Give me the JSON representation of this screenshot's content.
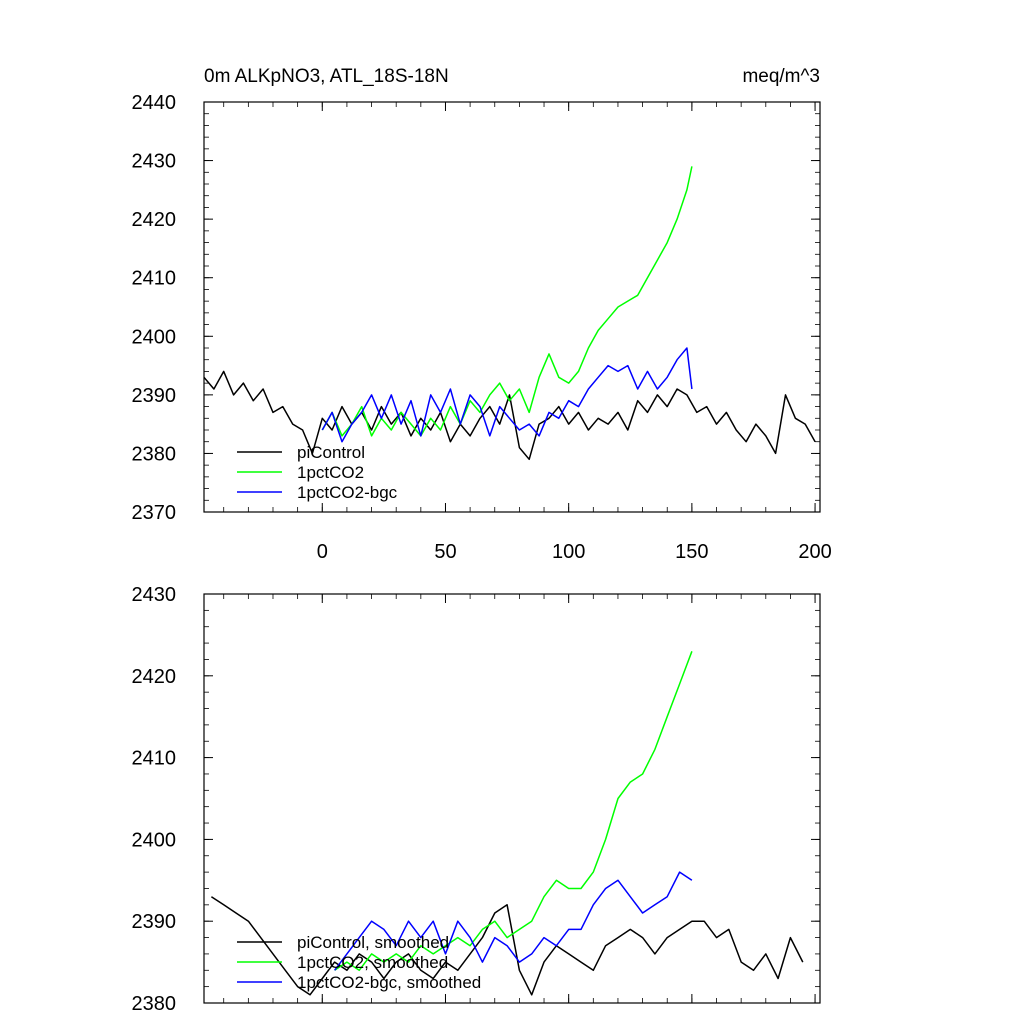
{
  "chart_data": [
    {
      "type": "line",
      "title": "0m ALKpNO3, ATL_18S-18N",
      "units": "meq/m^3",
      "xlabel": "",
      "ylabel": "",
      "xlim": [
        -48,
        202
      ],
      "ylim": [
        2370,
        2440
      ],
      "xticks": [
        0,
        50,
        100,
        150,
        200
      ],
      "xtick_labels": [
        "0",
        "50",
        "100",
        "150",
        "200"
      ],
      "yticks": [
        2370,
        2380,
        2390,
        2400,
        2410,
        2420,
        2430,
        2440
      ],
      "ytick_labels": [
        "2370",
        "2380",
        "2390",
        "2400",
        "2410",
        "2420",
        "2430",
        "2440"
      ],
      "legend_position": "bottom-left",
      "series": [
        {
          "name": "piControl",
          "color": "#000000",
          "x": [
            -48,
            -44,
            -40,
            -36,
            -32,
            -28,
            -24,
            -20,
            -16,
            -12,
            -8,
            -4,
            0,
            4,
            8,
            12,
            16,
            20,
            24,
            28,
            32,
            36,
            40,
            44,
            48,
            52,
            56,
            60,
            64,
            68,
            72,
            76,
            80,
            84,
            88,
            92,
            96,
            100,
            104,
            108,
            112,
            116,
            120,
            124,
            128,
            132,
            136,
            140,
            144,
            148,
            152,
            156,
            160,
            164,
            168,
            172,
            176,
            180,
            184,
            188,
            192,
            196,
            200
          ],
          "values": [
            2393,
            2391,
            2394,
            2390,
            2392,
            2389,
            2391,
            2387,
            2388,
            2385,
            2384,
            2380,
            2386,
            2384,
            2388,
            2385,
            2387,
            2384,
            2388,
            2385,
            2387,
            2383,
            2386,
            2384,
            2387,
            2382,
            2385,
            2383,
            2386,
            2388,
            2385,
            2390,
            2381,
            2379,
            2385,
            2386,
            2388,
            2385,
            2387,
            2384,
            2386,
            2385,
            2387,
            2384,
            2389,
            2387,
            2390,
            2388,
            2391,
            2390,
            2387,
            2388,
            2385,
            2387,
            2384,
            2382,
            2385,
            2383,
            2380,
            2390,
            2386,
            2385,
            2382
          ]
        },
        {
          "name": "1pctCO2",
          "color": "#00ff00",
          "x": [
            0,
            4,
            8,
            12,
            16,
            20,
            24,
            28,
            32,
            36,
            40,
            44,
            48,
            52,
            56,
            60,
            64,
            68,
            72,
            76,
            80,
            84,
            88,
            92,
            96,
            100,
            104,
            108,
            112,
            116,
            120,
            124,
            128,
            132,
            136,
            140,
            144,
            148,
            150
          ],
          "values": [
            2384,
            2387,
            2383,
            2385,
            2388,
            2383,
            2386,
            2384,
            2387,
            2385,
            2383,
            2386,
            2384,
            2388,
            2385,
            2389,
            2387,
            2390,
            2392,
            2389,
            2391,
            2387,
            2393,
            2397,
            2393,
            2392,
            2394,
            2398,
            2401,
            2403,
            2405,
            2406,
            2407,
            2410,
            2413,
            2416,
            2420,
            2425,
            2429
          ]
        },
        {
          "name": "1pctCO2-bgc",
          "color": "#0000ff",
          "x": [
            0,
            4,
            8,
            12,
            16,
            20,
            24,
            28,
            32,
            36,
            40,
            44,
            48,
            52,
            56,
            60,
            64,
            68,
            72,
            76,
            80,
            84,
            88,
            92,
            96,
            100,
            104,
            108,
            112,
            116,
            120,
            124,
            128,
            132,
            136,
            140,
            144,
            148,
            150
          ],
          "values": [
            2384,
            2387,
            2382,
            2385,
            2387,
            2390,
            2386,
            2390,
            2385,
            2389,
            2383,
            2390,
            2387,
            2391,
            2385,
            2390,
            2388,
            2383,
            2388,
            2386,
            2384,
            2385,
            2383,
            2387,
            2386,
            2389,
            2388,
            2391,
            2393,
            2395,
            2394,
            2395,
            2391,
            2394,
            2391,
            2393,
            2396,
            2398,
            2391
          ]
        }
      ]
    },
    {
      "type": "line",
      "title": "",
      "xlabel": "",
      "ylabel": "",
      "xlim": [
        -48,
        202
      ],
      "ylim": [
        2380,
        2430
      ],
      "xticks": [
        0,
        50,
        100,
        150,
        200
      ],
      "yticks": [
        2380,
        2390,
        2400,
        2410,
        2420,
        2430
      ],
      "ytick_labels": [
        "2380",
        "2390",
        "2400",
        "2410",
        "2420",
        "2430"
      ],
      "legend_position": "bottom-left",
      "series": [
        {
          "name": "piControl, smoothed",
          "color": "#000000",
          "x": [
            -45,
            -40,
            -35,
            -30,
            -25,
            -20,
            -15,
            -10,
            -5,
            0,
            5,
            10,
            15,
            20,
            25,
            30,
            35,
            40,
            45,
            50,
            55,
            60,
            65,
            70,
            75,
            80,
            85,
            90,
            95,
            100,
            105,
            110,
            115,
            120,
            125,
            130,
            135,
            140,
            145,
            150,
            155,
            160,
            165,
            170,
            175,
            180,
            185,
            190,
            195
          ],
          "values": [
            2393,
            2392,
            2391,
            2390,
            2388,
            2386,
            2384,
            2382,
            2381,
            2383,
            2385,
            2384,
            2386,
            2385,
            2383,
            2385,
            2386,
            2384,
            2383,
            2385,
            2384,
            2386,
            2388,
            2391,
            2392,
            2384,
            2381,
            2385,
            2387,
            2386,
            2385,
            2384,
            2387,
            2388,
            2389,
            2388,
            2386,
            2388,
            2389,
            2390,
            2390,
            2388,
            2389,
            2385,
            2384,
            2386,
            2383,
            2388,
            2385
          ]
        },
        {
          "name": "1pctCO2, smoothed",
          "color": "#00ff00",
          "x": [
            5,
            10,
            15,
            20,
            25,
            30,
            35,
            40,
            45,
            50,
            55,
            60,
            65,
            70,
            75,
            80,
            85,
            90,
            95,
            100,
            105,
            110,
            115,
            120,
            125,
            130,
            135,
            140,
            145,
            150
          ],
          "values": [
            2384,
            2385,
            2384,
            2386,
            2385,
            2386,
            2385,
            2387,
            2386,
            2387,
            2388,
            2387,
            2389,
            2390,
            2388,
            2389,
            2390,
            2393,
            2395,
            2394,
            2394,
            2396,
            2400,
            2405,
            2407,
            2408,
            2411,
            2415,
            2419,
            2423
          ]
        },
        {
          "name": "1pctCO2-bgc, smoothed",
          "color": "#0000ff",
          "x": [
            5,
            10,
            15,
            20,
            25,
            30,
            35,
            40,
            45,
            50,
            55,
            60,
            65,
            70,
            75,
            80,
            85,
            90,
            95,
            100,
            105,
            110,
            115,
            120,
            125,
            130,
            135,
            140,
            145,
            150
          ],
          "values": [
            2384,
            2386,
            2388,
            2390,
            2389,
            2387,
            2390,
            2388,
            2390,
            2386,
            2390,
            2388,
            2385,
            2388,
            2387,
            2385,
            2386,
            2388,
            2387,
            2389,
            2389,
            2392,
            2394,
            2395,
            2393,
            2391,
            2392,
            2393,
            2396,
            2395
          ]
        }
      ]
    }
  ]
}
